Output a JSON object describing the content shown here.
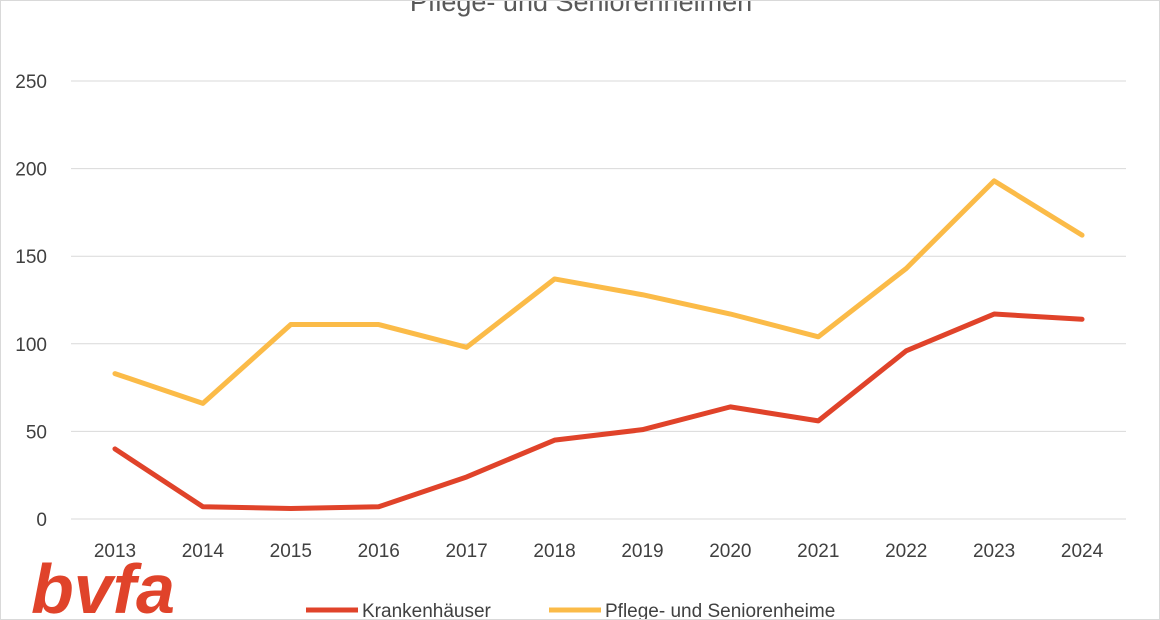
{
  "chart_data": {
    "type": "line",
    "title": "Pflege- und Seniorenheimen",
    "categories": [
      "2013",
      "2014",
      "2015",
      "2016",
      "2017",
      "2018",
      "2019",
      "2020",
      "2021",
      "2022",
      "2023",
      "2024"
    ],
    "ylim": [
      0,
      250
    ],
    "yticks": [
      0,
      50,
      100,
      150,
      200,
      250
    ],
    "grid": true,
    "legend_position": "bottom",
    "series": [
      {
        "name": "Krankenhäuser",
        "color": "#e0432a",
        "values": [
          40,
          7,
          6,
          7,
          24,
          45,
          51,
          64,
          56,
          96,
          117,
          114
        ]
      },
      {
        "name": "Pflege- und Seniorenheime",
        "color": "#fbbb48",
        "values": [
          83,
          66,
          111,
          111,
          98,
          137,
          128,
          117,
          104,
          143,
          193,
          162
        ]
      }
    ]
  },
  "logo": {
    "text": "bvfa",
    "color": "#e0432a"
  }
}
